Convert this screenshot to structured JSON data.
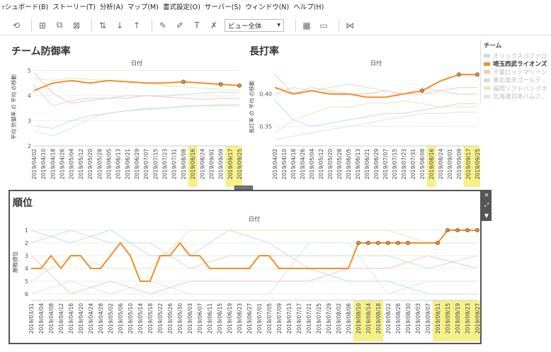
{
  "menu": [
    "ｯシュボード(B)",
    "ストーリー(T)",
    "分析(A)",
    "マップ(M)",
    "書式設定(O)",
    "サーバー(S)",
    "ウィンドウ(N)",
    "ヘルプ(H)"
  ],
  "toolbar": {
    "view_select": "ビュー全体",
    "icons": [
      "undo-icon",
      "add-datasource-icon",
      "duplicate-icon",
      "clear-icon",
      "swap-icon",
      "sort-asc-icon",
      "sort-desc-icon",
      "highlight-icon",
      "pin-icon",
      "label-icon",
      "format-icon",
      "fit-select",
      "show-me-icon",
      "presentation-icon",
      "share-icon"
    ]
  },
  "legend": {
    "title": "チーム",
    "items": [
      {
        "label": "オリックスバファローズ",
        "color": "#c7dce6",
        "active": false
      },
      {
        "label": "埼玉西武ライオンズ",
        "color": "#f28e2b",
        "active": true
      },
      {
        "label": "千葉ロッテマリーンズ",
        "color": "#f5c6c6",
        "active": false
      },
      {
        "label": "東北楽天ゴールデ..",
        "color": "#c9e2cf",
        "active": false
      },
      {
        "label": "福岡ソフトバンクホ..",
        "color": "#ece5b8",
        "active": false
      },
      {
        "label": "北海道日本ハムフ..",
        "color": "#d9e9e4",
        "active": false
      }
    ]
  },
  "charts": {
    "era": {
      "title": "チーム防御率",
      "header": "日付",
      "ylabel": "平均 防御率 の 平均 の移動",
      "yticks": [
        "5",
        "4",
        "3",
        "2"
      ],
      "dates": [
        "2019/04/02",
        "2019/04/10",
        "2019/04/18",
        "2019/04/26",
        "2019/05/04",
        "2019/05/12",
        "2019/05/20",
        "2019/05/28",
        "2019/06/05",
        "2019/06/13",
        "2019/06/21",
        "2019/06/29",
        "2019/07/07",
        "2019/07/15",
        "2019/07/23",
        "2019/07/31",
        "2019/08/08",
        "2019/08/16",
        "2019/08/24",
        "2019/09/01",
        "2019/09/09",
        "2019/09/17",
        "2019/09/25"
      ],
      "highlighted": [
        "2019/08/16",
        "2019/09/17",
        "2019/09/25"
      ]
    },
    "slugging": {
      "title": "長打率",
      "header": "日付",
      "ylabel": "長打率 の 平均 の移動",
      "yticks": [
        "0.40",
        "0.35"
      ],
      "dates": [
        "2019/04/02",
        "2019/04/10",
        "2019/04/18",
        "2019/04/26",
        "2019/05/04",
        "2019/05/12",
        "2019/05/20",
        "2019/05/28",
        "2019/06/05",
        "2019/06/13",
        "2019/06/21",
        "2019/06/29",
        "2019/07/07",
        "2019/07/15",
        "2019/07/23",
        "2019/07/31",
        "2019/08/08",
        "2019/08/16",
        "2019/08/24",
        "2019/09/01",
        "2019/09/09",
        "2019/09/17",
        "2019/09/25"
      ],
      "highlighted": [
        "2019/08/16",
        "2019/09/17",
        "2019/09/25"
      ]
    },
    "rank": {
      "title": "順位",
      "header": "日付",
      "ylabel": "勝敗順位",
      "yticks": [
        "1",
        "2",
        "3",
        "4",
        "5",
        "6"
      ],
      "dates": [
        "2019/03/31",
        "2019/04/04",
        "2019/04/08",
        "2019/04/12",
        "2019/04/16",
        "2019/04/20",
        "2019/04/24",
        "2019/04/28",
        "2019/05/02",
        "2019/05/06",
        "2019/05/10",
        "2019/05/14",
        "2019/05/18",
        "2019/05/22",
        "2019/05/26",
        "2019/05/30",
        "2019/06/03",
        "2019/06/07",
        "2019/06/11",
        "2019/06/15",
        "2019/06/19",
        "2019/06/23",
        "2019/06/27",
        "2019/07/01",
        "2019/07/05",
        "2019/07/09",
        "2019/07/13",
        "2019/07/17",
        "2019/07/21",
        "2019/07/25",
        "2019/07/29",
        "2019/08/02",
        "2019/08/06",
        "2019/08/10",
        "2019/08/14",
        "2019/08/18",
        "2019/08/22",
        "2019/08/26",
        "2019/08/30",
        "2019/09/03",
        "2019/09/07",
        "2019/09/11",
        "2019/09/15",
        "2019/09/19",
        "2019/09/23",
        "2019/09/27"
      ],
      "highlighted": [
        "2019/08/10",
        "2019/08/14",
        "2019/08/18",
        "2019/09/11",
        "2019/09/15",
        "2019/09/19",
        "2019/09/23",
        "2019/09/27"
      ]
    }
  },
  "chart_data": [
    {
      "type": "line",
      "title": "チーム防御率",
      "xlabel": "日付",
      "ylabel": "平均 防御率 の 平均 の移動",
      "ylim": [
        2,
        5.1
      ],
      "series": [
        {
          "name": "埼玉西武ライオンズ",
          "color": "#f28e2b",
          "x": [
            0,
            2,
            4,
            6,
            8,
            10,
            12,
            14,
            16,
            18,
            20,
            22
          ],
          "y": [
            4.2,
            4.5,
            4.6,
            4.5,
            4.6,
            4.55,
            4.5,
            4.5,
            4.55,
            4.5,
            4.45,
            4.4
          ]
        },
        {
          "name": "オリックスバファローズ",
          "color": "#c7dce6",
          "x": [
            0,
            2,
            4,
            6,
            8,
            10,
            12,
            14,
            16,
            18,
            20,
            22
          ],
          "y": [
            4.4,
            3.6,
            3.8,
            3.9,
            3.9,
            3.9,
            4.0,
            4.0,
            4.05,
            4.1,
            4.15,
            4.1
          ]
        },
        {
          "name": "千葉ロッテマリーンズ",
          "color": "#f5c6c6",
          "x": [
            0,
            2,
            4,
            6,
            8,
            10,
            12,
            14,
            16,
            18,
            20,
            22
          ],
          "y": [
            4.9,
            4.1,
            3.7,
            3.8,
            3.9,
            4.0,
            4.0,
            3.95,
            3.9,
            3.85,
            3.9,
            3.9
          ]
        },
        {
          "name": "東北楽天ゴールデ..",
          "color": "#c9e2cf",
          "x": [
            0,
            2,
            4,
            6,
            8,
            10,
            12,
            14,
            16,
            18,
            20,
            22
          ],
          "y": [
            2.8,
            2.7,
            3.0,
            3.2,
            3.3,
            3.4,
            3.45,
            3.5,
            3.55,
            3.6,
            3.6,
            3.6
          ]
        },
        {
          "name": "福岡ソフトバンクホ..",
          "color": "#ece5b8",
          "x": [
            0,
            2,
            4,
            6,
            8,
            10,
            12,
            14,
            16,
            18,
            20,
            22
          ],
          "y": [
            4.7,
            4.6,
            4.7,
            4.65,
            4.6,
            4.55,
            4.5,
            4.4,
            4.35,
            4.3,
            4.25,
            4.2
          ]
        },
        {
          "name": "北海道日本ハムフ..",
          "color": "#d9e9e4",
          "x": [
            0,
            2,
            4,
            6,
            8,
            10,
            12,
            14,
            16,
            18,
            20,
            22
          ],
          "y": [
            2.6,
            2.4,
            2.7,
            3.1,
            3.3,
            3.4,
            3.5,
            3.5,
            3.6,
            3.6,
            3.65,
            3.65
          ]
        }
      ]
    },
    {
      "type": "line",
      "title": "長打率",
      "xlabel": "日付",
      "ylabel": "長打率 の 平均 の移動",
      "ylim": [
        0.32,
        0.44
      ],
      "series": [
        {
          "name": "埼玉西武ライオンズ",
          "color": "#f28e2b",
          "x": [
            0,
            2,
            4,
            6,
            8,
            10,
            12,
            14,
            16,
            18,
            20,
            22
          ],
          "y": [
            0.41,
            0.4,
            0.405,
            0.4,
            0.4,
            0.395,
            0.395,
            0.4,
            0.405,
            0.42,
            0.43,
            0.43
          ]
        },
        {
          "name": "オリックスバファローズ",
          "color": "#c7dce6",
          "x": [
            0,
            2,
            4,
            6,
            8,
            10,
            12,
            14,
            16,
            18,
            20,
            22
          ],
          "y": [
            0.39,
            0.36,
            0.35,
            0.355,
            0.36,
            0.365,
            0.37,
            0.37,
            0.375,
            0.38,
            0.385,
            0.385
          ]
        },
        {
          "name": "千葉ロッテマリーンズ",
          "color": "#f5c6c6",
          "x": [
            0,
            2,
            4,
            6,
            8,
            10,
            12,
            14,
            16,
            18,
            20,
            22
          ],
          "y": [
            0.43,
            0.4,
            0.41,
            0.405,
            0.4,
            0.4,
            0.405,
            0.4,
            0.4,
            0.405,
            0.41,
            0.41
          ]
        },
        {
          "name": "東北楽天ゴールデ..",
          "color": "#c9e2cf",
          "x": [
            0,
            2,
            4,
            6,
            8,
            10,
            12,
            14,
            16,
            18,
            20,
            22
          ],
          "y": [
            0.4,
            0.41,
            0.405,
            0.41,
            0.415,
            0.41,
            0.405,
            0.4,
            0.41,
            0.405,
            0.4,
            0.4
          ]
        },
        {
          "name": "福岡ソフトバンクホ..",
          "color": "#ece5b8",
          "x": [
            0,
            2,
            4,
            6,
            8,
            10,
            12,
            14,
            16,
            18,
            20,
            22
          ],
          "y": [
            0.34,
            0.36,
            0.37,
            0.38,
            0.38,
            0.385,
            0.385,
            0.39,
            0.385,
            0.38,
            0.38,
            0.38
          ]
        },
        {
          "name": "北海道日本ハムフ..",
          "color": "#d9e9e4",
          "x": [
            0,
            2,
            4,
            6,
            8,
            10,
            12,
            14,
            16,
            18,
            20,
            22
          ],
          "y": [
            0.33,
            0.335,
            0.34,
            0.345,
            0.35,
            0.355,
            0.36,
            0.365,
            0.37,
            0.37,
            0.372,
            0.372
          ]
        }
      ]
    },
    {
      "type": "line",
      "title": "順位",
      "xlabel": "日付",
      "ylabel": "勝敗順位",
      "ylim": [
        6.5,
        0.5
      ],
      "series": [
        {
          "name": "埼玉西武ライオンズ",
          "color": "#f28e2b",
          "x": [
            0,
            1,
            2,
            3,
            4,
            5,
            6,
            7,
            8,
            9,
            10,
            11,
            12,
            13,
            14,
            15,
            16,
            17,
            18,
            19,
            20,
            21,
            22,
            23,
            24,
            25,
            26,
            27,
            28,
            29,
            30,
            31,
            32,
            33,
            34,
            35,
            36,
            37,
            38,
            39,
            40,
            41,
            42,
            43,
            44,
            45
          ],
          "y": [
            4,
            4,
            3,
            4,
            3,
            3,
            4,
            4,
            3,
            2,
            3,
            5,
            5,
            3,
            3,
            2,
            3,
            3,
            4,
            4,
            4,
            4,
            4,
            3,
            3,
            4,
            4,
            4,
            4,
            4,
            4,
            4,
            4,
            2,
            2,
            2,
            2,
            2,
            2,
            2,
            2,
            2,
            1,
            1,
            1,
            1
          ]
        },
        {
          "name": "オリックスバファローズ",
          "color": "#c7dce6",
          "x": [
            0,
            4,
            8,
            12,
            16,
            20,
            24,
            28,
            32,
            36,
            40,
            45
          ],
          "y": [
            1,
            2,
            1,
            3,
            3,
            1,
            2,
            4,
            5,
            5,
            6,
            6
          ]
        },
        {
          "name": "千葉ロッテマリーンズ",
          "color": "#f5c6c6",
          "x": [
            0,
            4,
            8,
            12,
            16,
            20,
            24,
            28,
            32,
            36,
            40,
            45
          ],
          "y": [
            3,
            6,
            5,
            6,
            5,
            5,
            5,
            5,
            4,
            4,
            3,
            4
          ]
        },
        {
          "name": "東北楽天ゴールデ..",
          "color": "#c9e2cf",
          "x": [
            0,
            4,
            8,
            12,
            16,
            20,
            24,
            28,
            32,
            36,
            40,
            45
          ],
          "y": [
            2,
            1,
            2,
            2,
            4,
            3,
            3,
            3,
            3,
            3,
            4,
            3
          ]
        },
        {
          "name": "福岡ソフトバンクホ..",
          "color": "#ece5b8",
          "x": [
            0,
            4,
            8,
            12,
            16,
            20,
            24,
            28,
            32,
            36,
            40,
            45
          ],
          "y": [
            5,
            3,
            4,
            4,
            1,
            1,
            1,
            1,
            1,
            1,
            2,
            2
          ]
        },
        {
          "name": "北海道日本ハムフ..",
          "color": "#d9e9e4",
          "x": [
            0,
            4,
            8,
            12,
            16,
            20,
            24,
            28,
            32,
            36,
            40,
            45
          ],
          "y": [
            6,
            5,
            6,
            5,
            6,
            6,
            6,
            2,
            2,
            6,
            5,
            5
          ]
        }
      ]
    }
  ]
}
